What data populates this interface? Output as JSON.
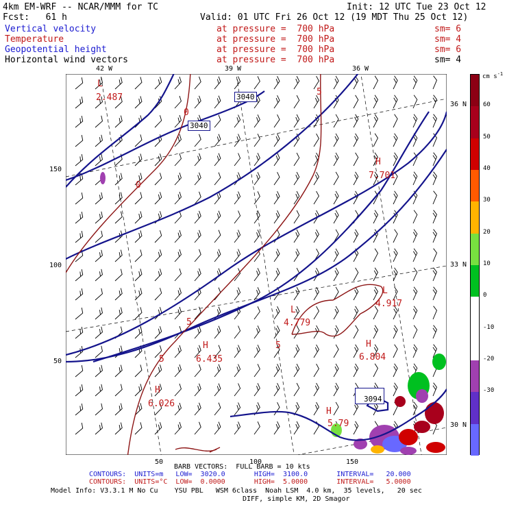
{
  "header": {
    "model": "4km EM-WRF -- NCAR/MMM for TC",
    "init": "Init: 12 UTC Tue 23 Oct 12",
    "fcst": "Fcst:   61 h",
    "valid": "Valid: 01 UTC Fri 26 Oct 12 (19 MDT Thu 25 Oct 12)"
  },
  "fields": [
    {
      "name": "Vertical velocity",
      "level": "at pressure =  700 hPa",
      "sm": "sm= 6",
      "color": "#1a1ad0"
    },
    {
      "name": "Temperature",
      "level": "at pressure =  700 hPa",
      "sm": "sm= 4",
      "color": "#c01818"
    },
    {
      "name": "Geopotential height",
      "level": "at pressure =  700 hPa",
      "sm": "sm= 6",
      "color": "#1a1ad0"
    },
    {
      "name": "Horizontal wind vectors",
      "level": "at pressure =  700 hPa",
      "sm": "sm= 4",
      "color": "#000000"
    }
  ],
  "map": {
    "lon_labels": [
      "42 W",
      "39 W",
      "36 W"
    ],
    "lat_labels": [
      "36 N",
      "33 N",
      "30 N"
    ],
    "grid_y_labels": [
      "150",
      "100",
      "50"
    ],
    "grid_x_labels": [
      "50",
      "100",
      "150"
    ],
    "height_labels": [
      "3040",
      "3040",
      "3094"
    ],
    "temp_labels": [
      "0",
      "0",
      "5",
      "5",
      "5",
      "5"
    ],
    "highs_lows": [
      {
        "mark": "L",
        "value": "2.487"
      },
      {
        "mark": "H",
        "value": "7.701"
      },
      {
        "mark": "L",
        "value": "4.917"
      },
      {
        "mark": "L",
        "value": "4.779"
      },
      {
        "mark": "H",
        "value": "6.435"
      },
      {
        "mark": "H",
        "value": "6.804"
      },
      {
        "mark": "H",
        "value": "6.026"
      },
      {
        "mark": "H",
        "value": "5.79"
      }
    ]
  },
  "colorbar": {
    "units": "cm s",
    "labels": [
      "60",
      "50",
      "40",
      "30",
      "20",
      "10",
      "0",
      "-10",
      "-20",
      "-30"
    ],
    "colors": [
      "#a8001c",
      "#d00000",
      "#ff5a00",
      "#ffb400",
      "#78e040",
      "#00c020",
      "#ffffff",
      "#a040b0",
      "#6030c8",
      "#6868ff"
    ]
  },
  "footer": {
    "barb": "BARB VECTORS:  FULL BARB = 10 kts",
    "contours1": "CONTOURS:  UNITS=m   LOW=  3020.0       HIGH=  3100.0       INTERVAL=   20.000",
    "contours2": "CONTOURS:  UNITS=°C  LOW=  0.0000       HIGH=  5.0000       INTERVAL=   5.0000",
    "model_info": "Model Info: V3.3.1 M No Cu    YSU PBL   WSM 6class  Noah LSM  4.0 km,  35 levels,   20 sec",
    "model_info2": "DIFF, simple KM, 2D Smagor"
  }
}
